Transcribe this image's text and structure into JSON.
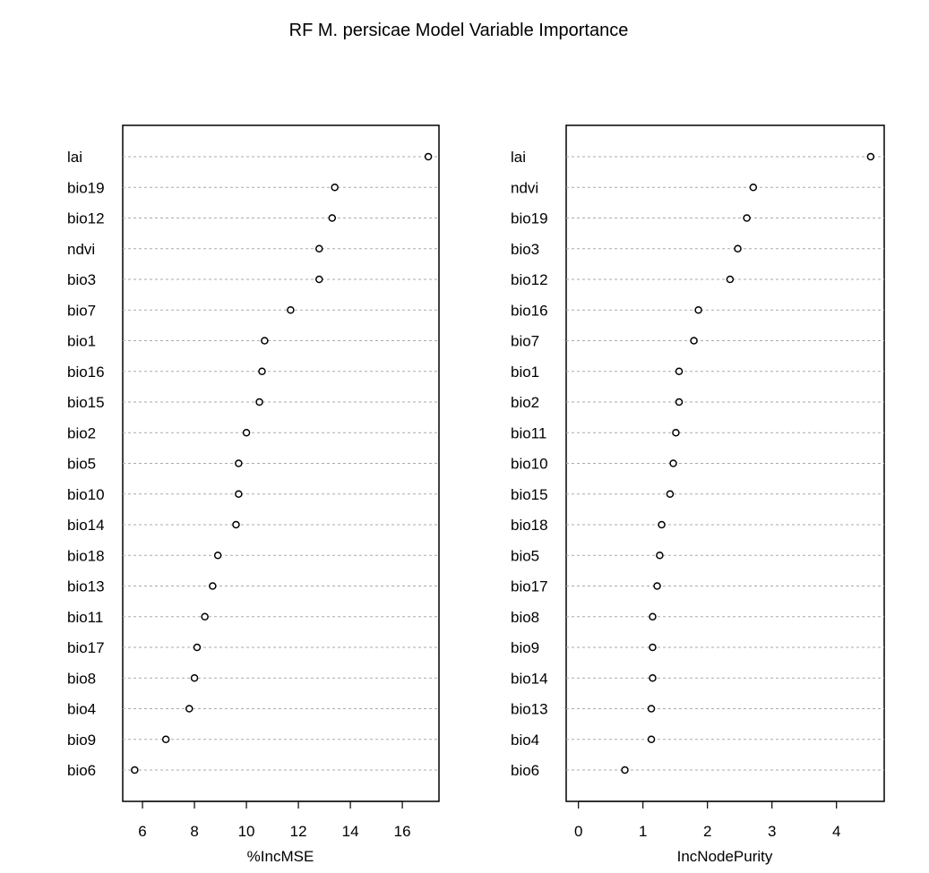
{
  "title": "RF M. persicae Model Variable Importance",
  "chart_data": [
    {
      "type": "scatter",
      "subtype": "dotchart",
      "xlabel": "%IncMSE",
      "xlim": [
        5.24,
        17.41
      ],
      "xticks": [
        6,
        8,
        10,
        12,
        14,
        16
      ],
      "grid": "horizontal dotted",
      "categories": [
        "lai",
        "bio19",
        "bio12",
        "ndvi",
        "bio3",
        "bio7",
        "bio1",
        "bio16",
        "bio15",
        "bio2",
        "bio5",
        "bio10",
        "bio14",
        "bio18",
        "bio13",
        "bio11",
        "bio17",
        "bio8",
        "bio4",
        "bio9",
        "bio6"
      ],
      "values": [
        17.0,
        13.4,
        13.3,
        12.8,
        12.8,
        11.7,
        10.7,
        10.6,
        10.5,
        10.0,
        9.7,
        9.7,
        9.6,
        8.9,
        8.7,
        8.4,
        8.1,
        8.0,
        7.8,
        6.9,
        5.7
      ]
    },
    {
      "type": "scatter",
      "subtype": "dotchart",
      "xlabel": "IncNodePurity",
      "xlim": [
        -0.19,
        4.74
      ],
      "xticks": [
        0,
        1,
        2,
        3,
        4
      ],
      "grid": "horizontal dotted",
      "categories": [
        "lai",
        "ndvi",
        "bio19",
        "bio3",
        "bio12",
        "bio16",
        "bio7",
        "bio1",
        "bio2",
        "bio11",
        "bio10",
        "bio15",
        "bio18",
        "bio5",
        "bio17",
        "bio8",
        "bio9",
        "bio14",
        "bio13",
        "bio4",
        "bio6"
      ],
      "values": [
        4.53,
        2.71,
        2.61,
        2.47,
        2.35,
        1.86,
        1.79,
        1.56,
        1.56,
        1.51,
        1.47,
        1.42,
        1.29,
        1.26,
        1.22,
        1.15,
        1.15,
        1.15,
        1.13,
        1.13,
        0.72
      ]
    }
  ]
}
